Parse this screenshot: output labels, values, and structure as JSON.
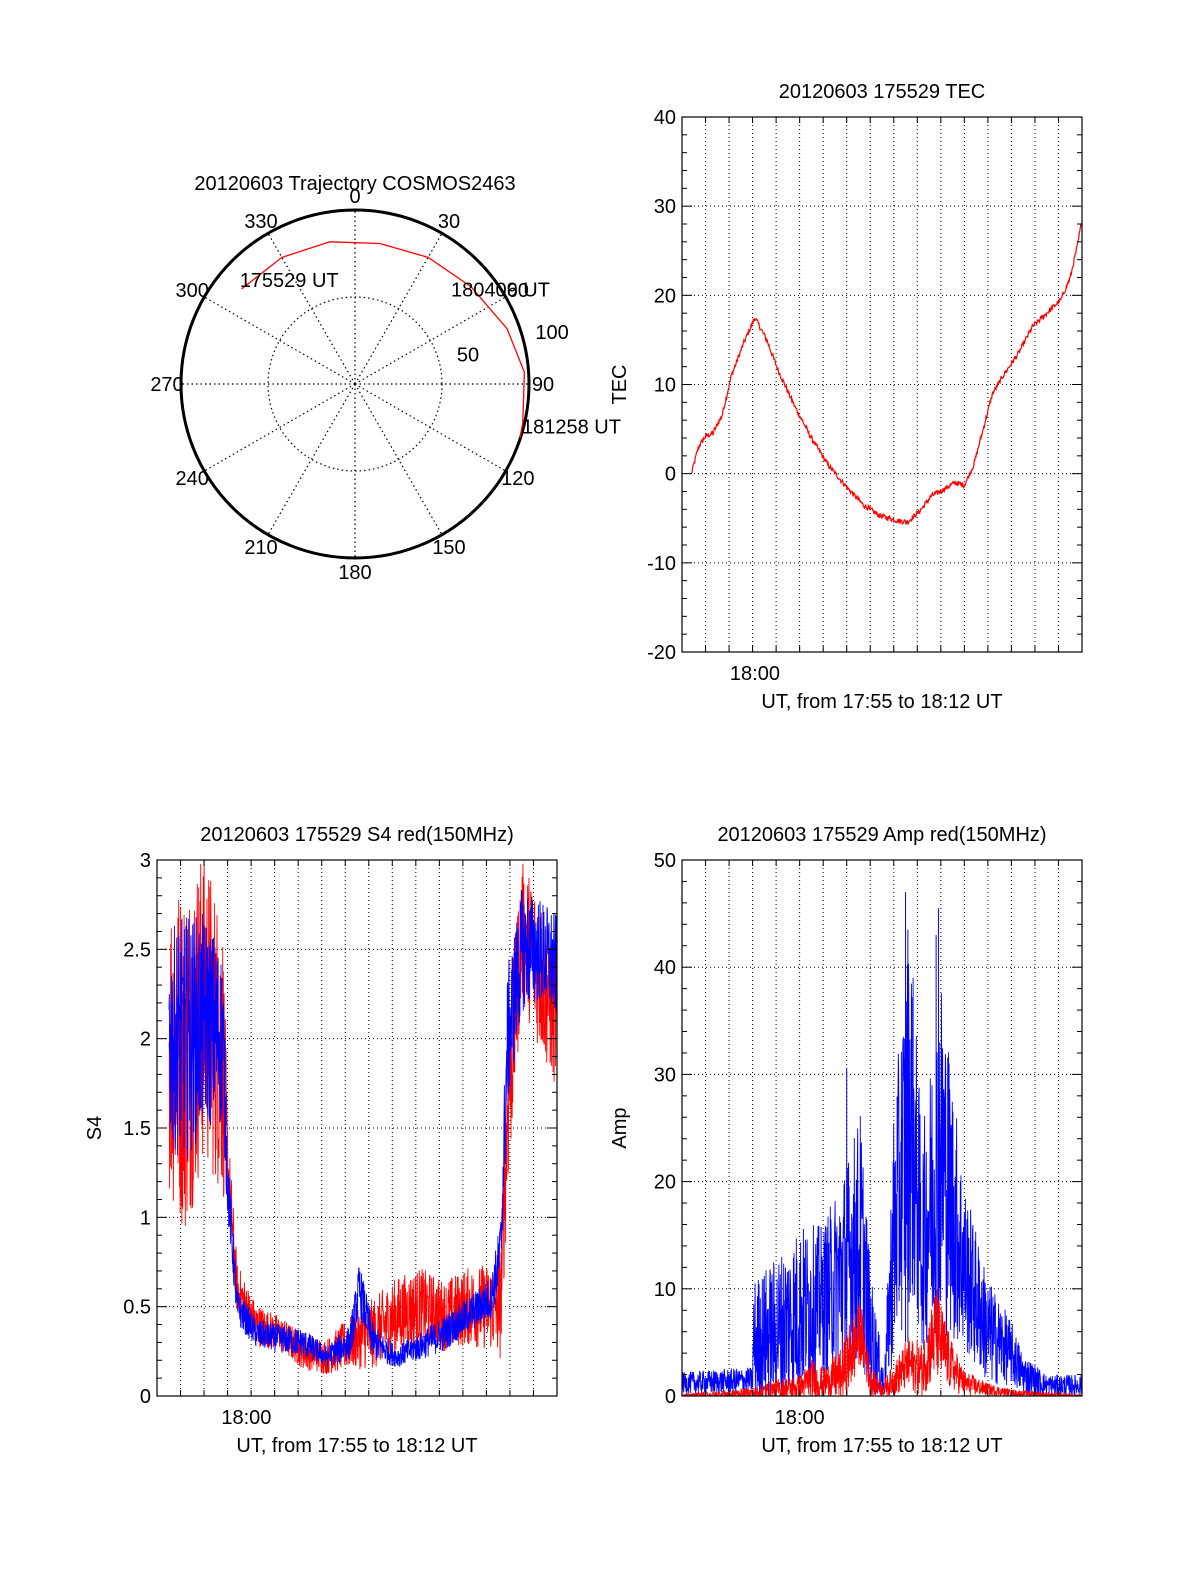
{
  "chart_data": [
    {
      "type": "polar",
      "title": "20120603 Trajectory COSMOS2463",
      "azimuth_labels": [
        "0",
        "30",
        "60",
        "90",
        "120",
        "150",
        "180",
        "210",
        "240",
        "270",
        "300",
        "330"
      ],
      "azimuth_values": [
        0,
        30,
        60,
        90,
        120,
        150,
        180,
        210,
        240,
        270,
        300,
        330
      ],
      "radial_labels": [
        "50",
        "100"
      ],
      "radial_values": [
        50,
        100
      ],
      "radial_max": 100,
      "grid": true,
      "series": [
        {
          "color": "#ff0000",
          "points": [
            [
              -50,
              85
            ],
            [
              -30,
              84
            ],
            [
              -10,
              83
            ],
            [
              10,
              82
            ],
            [
              30,
              84
            ],
            [
              50,
              87
            ],
            [
              70,
              93
            ],
            [
              86,
              97.6
            ],
            [
              103,
              99
            ],
            [
              108,
              99.7
            ]
          ]
        }
      ],
      "annotations": [
        {
          "text": "175529 UT",
          "azimuth": -50,
          "radius": 85
        },
        {
          "text": "180409 UT",
          "azimuth": 50,
          "radius": 87
        },
        {
          "text": "181258 UT",
          "azimuth": 108,
          "radius": 99.7
        }
      ]
    },
    {
      "type": "line",
      "title": "20120603 175529 TEC",
      "xlabel": "UT, from 17:55 to 18:12 UT",
      "ylabel": "TEC",
      "xlim": [
        0,
        17
      ],
      "ylim": [
        -20,
        40
      ],
      "yticks": [
        "-20",
        "-10",
        "0",
        "10",
        "20",
        "30",
        "40"
      ],
      "ytick_values": [
        -20,
        -10,
        0,
        10,
        20,
        30,
        40
      ],
      "xticks": [
        "18:00"
      ],
      "xtick_values": [
        3.1
      ],
      "grid": true,
      "series": [
        {
          "color": "#ff0000",
          "x": [
            0.4,
            0.7,
            1.0,
            1.3,
            1.7,
            2.1,
            2.6,
            3.1,
            3.6,
            4.1,
            4.8,
            5.5,
            6.2,
            7.0,
            7.7,
            8.4,
            9.2,
            9.6,
            10.1,
            10.6,
            11.1,
            11.6,
            12.0,
            12.4,
            12.8,
            13.2,
            13.7,
            14.3,
            14.9,
            15.5,
            16.1,
            16.5,
            16.8,
            17.0
          ],
          "y": [
            0,
            3,
            4.2,
            4.5,
            6.5,
            11,
            14.5,
            17.5,
            15,
            11.5,
            7.5,
            4,
            1,
            -1.5,
            -3.5,
            -4.7,
            -5.3,
            -5.4,
            -4.2,
            -2.5,
            -1.8,
            -1,
            -1.3,
            1,
            5,
            9,
            11.2,
            13.5,
            16.5,
            18,
            19.5,
            22,
            25.5,
            28.5
          ]
        }
      ]
    },
    {
      "type": "line",
      "title": "20120603 175529 S4 red(150MHz)",
      "xlabel": "UT, from 17:55 to 18:12 UT",
      "ylabel": "S4",
      "xlim": [
        0,
        17
      ],
      "ylim": [
        0,
        3
      ],
      "yticks": [
        "0",
        "0.5",
        "1",
        "1.5",
        "2",
        "2.5",
        "3"
      ],
      "ytick_values": [
        0,
        0.5,
        1,
        1.5,
        2,
        2.5,
        3
      ],
      "xticks": [
        "18:00"
      ],
      "xtick_values": [
        3.8
      ],
      "grid": true,
      "series": [
        {
          "color": "#ff0000",
          "x": [
            0.5,
            1.2,
            2.0,
            2.8,
            3.0,
            3.4,
            4.2,
            5.2,
            6.2,
            7.2,
            8.2,
            9.2,
            10.2,
            11.2,
            12.2,
            13.2,
            14.2,
            14.6,
            14.9,
            15.5,
            16.2,
            17.0
          ],
          "y": [
            2.0,
            1.9,
            2.2,
            1.9,
            1.3,
            0.6,
            0.4,
            0.35,
            0.25,
            0.22,
            0.3,
            0.35,
            0.45,
            0.5,
            0.45,
            0.5,
            0.5,
            0.5,
            1.6,
            2.6,
            2.4,
            2.1
          ],
          "amplitude": [
            0.9,
            1.0,
            0.9,
            0.8,
            0.25,
            0.15,
            0.12,
            0.1,
            0.1,
            0.1,
            0.15,
            0.2,
            0.22,
            0.22,
            0.2,
            0.22,
            0.25,
            0.3,
            0.5,
            0.4,
            0.45,
            0.4
          ]
        },
        {
          "color": "#0000ff",
          "x": [
            0.5,
            1.2,
            2.0,
            2.8,
            3.0,
            3.4,
            4.2,
            5.2,
            6.2,
            7.2,
            8.2,
            8.6,
            9.2,
            10.2,
            11.2,
            12.2,
            13.2,
            14.2,
            14.6,
            14.9,
            15.5,
            16.2,
            17.0
          ],
          "y": [
            2.0,
            2.0,
            2.1,
            2.0,
            1.2,
            0.5,
            0.35,
            0.32,
            0.3,
            0.22,
            0.3,
            0.6,
            0.3,
            0.22,
            0.28,
            0.35,
            0.45,
            0.55,
            0.8,
            2.0,
            2.5,
            2.5,
            2.4
          ],
          "amplitude": [
            0.6,
            0.7,
            0.6,
            0.5,
            0.2,
            0.1,
            0.08,
            0.08,
            0.08,
            0.06,
            0.1,
            0.15,
            0.1,
            0.06,
            0.08,
            0.1,
            0.1,
            0.12,
            0.2,
            0.4,
            0.35,
            0.3,
            0.3
          ]
        }
      ]
    },
    {
      "type": "line",
      "title": "20120603 175529 Amp red(150MHz)",
      "xlabel": "UT, from 17:55 to 18:12 UT",
      "ylabel": "Amp",
      "xlim": [
        0,
        17
      ],
      "ylim": [
        0,
        50
      ],
      "yticks": [
        "0",
        "10",
        "20",
        "30",
        "40",
        "50"
      ],
      "ytick_values": [
        0,
        10,
        20,
        30,
        40,
        50
      ],
      "xticks": [
        "18:00"
      ],
      "xtick_values": [
        5.0
      ],
      "grid": true,
      "series": [
        {
          "color": "#0000ff",
          "x": [
            0.0,
            1.5,
            3.0,
            3.05,
            4.0,
            5.0,
            6.0,
            7.0,
            7.6,
            8.0,
            8.6,
            9.0,
            9.7,
            10.2,
            11.0,
            12.0,
            13.0,
            14.0,
            14.5,
            15.5,
            17.0
          ],
          "y": [
            1.2,
            1.3,
            1.5,
            5,
            6,
            8,
            9,
            12,
            15,
            6,
            1,
            15,
            27,
            14,
            23,
            12,
            6,
            4,
            2,
            1,
            1
          ],
          "amplitude": [
            1.0,
            1.2,
            1.2,
            6,
            7,
            8,
            7,
            10,
            12,
            6,
            1,
            12,
            18,
            10,
            17,
            8,
            5,
            3,
            2,
            1,
            1
          ],
          "peaks": [
            [
              7.0,
              30.5
            ],
            [
              9.5,
              47
            ],
            [
              10.9,
              45.5
            ],
            [
              10.8,
              43
            ],
            [
              9.6,
              43.5
            ]
          ]
        },
        {
          "color": "#ff0000",
          "x": [
            0.0,
            3.0,
            4.0,
            5.0,
            5.5,
            6.0,
            6.8,
            7.2,
            7.6,
            8.0,
            8.5,
            9.0,
            9.6,
            10.2,
            10.8,
            11.4,
            12.0,
            13.0,
            14.0,
            17.0
          ],
          "y": [
            0,
            0.3,
            0.6,
            0.8,
            1.5,
            1.2,
            2,
            4,
            6,
            1.5,
            0.6,
            1.5,
            3,
            2.5,
            6,
            3,
            1.2,
            0.6,
            0.3,
            0
          ],
          "amplitude": [
            0.2,
            0.5,
            1,
            1.2,
            2,
            1.5,
            2.5,
            3.5,
            3,
            1.5,
            0.6,
            1.5,
            2.5,
            2.5,
            4.5,
            2.5,
            1.2,
            0.6,
            0.3,
            0.1
          ]
        }
      ]
    }
  ]
}
